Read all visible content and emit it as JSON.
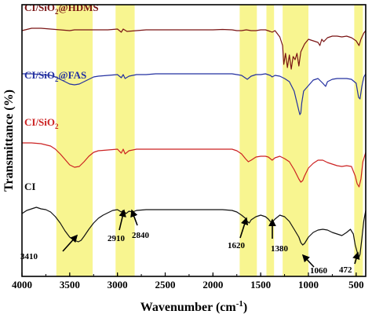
{
  "chart_data": {
    "type": "line",
    "xlabel": "Wavenumber (cm",
    "xlabel_sup": "-1",
    "xlabel_end": ")",
    "ylabel": "Transmittance (%)",
    "xlim": [
      4000,
      400
    ],
    "x_reversed": true,
    "x_ticks": [
      4000,
      3500,
      3000,
      2500,
      2000,
      1500,
      1000,
      500
    ],
    "y_ticks_shown": false,
    "grid": false,
    "legend": "none",
    "highlight_color": "#f7f37d",
    "highlight_bands": [
      [
        3640,
        3260
      ],
      [
        3020,
        2820
      ],
      [
        1720,
        1540
      ],
      [
        1440,
        1360
      ],
      [
        1270,
        1000
      ],
      [
        520,
        430
      ]
    ],
    "series": [
      {
        "name": "CI/SiO@HDMS",
        "label_base": "CI/SiO",
        "label_sub": "2",
        "label_end": "@HDMS",
        "color": "#7a1414",
        "points": [
          [
            4000,
            33
          ],
          [
            3900,
            30
          ],
          [
            3800,
            30
          ],
          [
            3700,
            31
          ],
          [
            3600,
            32
          ],
          [
            3500,
            33
          ],
          [
            3450,
            32
          ],
          [
            3400,
            32
          ],
          [
            3300,
            32
          ],
          [
            3200,
            32
          ],
          [
            3100,
            32
          ],
          [
            3000,
            31
          ],
          [
            2960,
            35
          ],
          [
            2940,
            31
          ],
          [
            2900,
            34
          ],
          [
            2800,
            33
          ],
          [
            2700,
            32
          ],
          [
            2600,
            32
          ],
          [
            2500,
            32
          ],
          [
            2400,
            32
          ],
          [
            2300,
            32
          ],
          [
            2200,
            32
          ],
          [
            2100,
            32
          ],
          [
            2000,
            32
          ],
          [
            1900,
            31.5
          ],
          [
            1800,
            32
          ],
          [
            1750,
            33
          ],
          [
            1700,
            33
          ],
          [
            1650,
            32
          ],
          [
            1600,
            33
          ],
          [
            1550,
            33
          ],
          [
            1500,
            32
          ],
          [
            1450,
            32
          ],
          [
            1400,
            34
          ],
          [
            1380,
            35
          ],
          [
            1350,
            33
          ],
          [
            1300,
            41
          ],
          [
            1270,
            52
          ],
          [
            1258,
            76
          ],
          [
            1240,
            62
          ],
          [
            1220,
            80
          ],
          [
            1200,
            64
          ],
          [
            1180,
            82
          ],
          [
            1160,
            66
          ],
          [
            1140,
            70
          ],
          [
            1120,
            62
          ],
          [
            1100,
            78
          ],
          [
            1080,
            60
          ],
          [
            1060,
            55
          ],
          [
            1040,
            50
          ],
          [
            1000,
            44
          ],
          [
            950,
            46
          ],
          [
            900,
            48
          ],
          [
            880,
            52
          ],
          [
            860,
            44
          ],
          [
            840,
            47
          ],
          [
            800,
            42
          ],
          [
            750,
            40
          ],
          [
            700,
            40
          ],
          [
            650,
            41
          ],
          [
            600,
            40
          ],
          [
            550,
            42
          ],
          [
            500,
            46
          ],
          [
            470,
            52
          ],
          [
            450,
            44
          ],
          [
            420,
            36
          ],
          [
            400,
            33
          ]
        ]
      },
      {
        "name": "CI/SiO@FAS",
        "label_base": "CI/SiO",
        "label_sub": "2",
        "label_end": "@FAS",
        "color": "#2330a0",
        "points": [
          [
            4000,
            88
          ],
          [
            3900,
            88
          ],
          [
            3800,
            89
          ],
          [
            3700,
            90
          ],
          [
            3650,
            92
          ],
          [
            3600,
            95
          ],
          [
            3550,
            98
          ],
          [
            3500,
            101
          ],
          [
            3450,
            102
          ],
          [
            3400,
            101
          ],
          [
            3350,
            98
          ],
          [
            3300,
            95
          ],
          [
            3250,
            92
          ],
          [
            3200,
            91
          ],
          [
            3100,
            90
          ],
          [
            3000,
            89
          ],
          [
            2960,
            93
          ],
          [
            2940,
            89
          ],
          [
            2920,
            94
          ],
          [
            2880,
            91
          ],
          [
            2800,
            89
          ],
          [
            2700,
            89
          ],
          [
            2600,
            88
          ],
          [
            2500,
            88
          ],
          [
            2400,
            88
          ],
          [
            2300,
            88
          ],
          [
            2200,
            88
          ],
          [
            2100,
            88
          ],
          [
            2000,
            88
          ],
          [
            1900,
            88
          ],
          [
            1800,
            88
          ],
          [
            1750,
            89
          ],
          [
            1700,
            90
          ],
          [
            1640,
            95
          ],
          [
            1600,
            91
          ],
          [
            1550,
            89
          ],
          [
            1500,
            89
          ],
          [
            1450,
            88
          ],
          [
            1400,
            90
          ],
          [
            1380,
            92
          ],
          [
            1350,
            90
          ],
          [
            1300,
            91
          ],
          [
            1250,
            94
          ],
          [
            1200,
            98
          ],
          [
            1150,
            110
          ],
          [
            1120,
            125
          ],
          [
            1100,
            135
          ],
          [
            1090,
            140
          ],
          [
            1080,
            138
          ],
          [
            1070,
            125
          ],
          [
            1050,
            110
          ],
          [
            1000,
            103
          ],
          [
            950,
            96
          ],
          [
            900,
            94
          ],
          [
            850,
            100
          ],
          [
            820,
            104
          ],
          [
            800,
            98
          ],
          [
            750,
            95
          ],
          [
            700,
            94
          ],
          [
            650,
            94
          ],
          [
            600,
            94
          ],
          [
            550,
            95
          ],
          [
            500,
            100
          ],
          [
            475,
            118
          ],
          [
            460,
            120
          ],
          [
            440,
            104
          ],
          [
            420,
            92
          ],
          [
            400,
            88
          ]
        ]
      },
      {
        "name": "CI/SiO",
        "label_base": "CI/SiO",
        "label_sub": "2",
        "label_end": "",
        "color": "#cc2222",
        "points": [
          [
            4000,
            176
          ],
          [
            3900,
            176
          ],
          [
            3800,
            177
          ],
          [
            3700,
            180
          ],
          [
            3650,
            184
          ],
          [
            3600,
            190
          ],
          [
            3550,
            197
          ],
          [
            3500,
            204
          ],
          [
            3450,
            207
          ],
          [
            3400,
            206
          ],
          [
            3350,
            200
          ],
          [
            3300,
            193
          ],
          [
            3250,
            188
          ],
          [
            3200,
            186
          ],
          [
            3100,
            185
          ],
          [
            3000,
            184
          ],
          [
            2960,
            189
          ],
          [
            2940,
            184
          ],
          [
            2920,
            190
          ],
          [
            2880,
            186
          ],
          [
            2800,
            184
          ],
          [
            2700,
            184
          ],
          [
            2600,
            184
          ],
          [
            2500,
            184
          ],
          [
            2400,
            184
          ],
          [
            2300,
            184
          ],
          [
            2200,
            184
          ],
          [
            2100,
            184
          ],
          [
            2000,
            184
          ],
          [
            1900,
            184
          ],
          [
            1800,
            184
          ],
          [
            1750,
            186
          ],
          [
            1700,
            190
          ],
          [
            1660,
            196
          ],
          [
            1630,
            200
          ],
          [
            1600,
            198
          ],
          [
            1550,
            194
          ],
          [
            1500,
            193
          ],
          [
            1450,
            193
          ],
          [
            1420,
            194
          ],
          [
            1380,
            198
          ],
          [
            1350,
            195
          ],
          [
            1300,
            193
          ],
          [
            1250,
            196
          ],
          [
            1200,
            200
          ],
          [
            1150,
            210
          ],
          [
            1100,
            222
          ],
          [
            1080,
            226
          ],
          [
            1060,
            224
          ],
          [
            1040,
            218
          ],
          [
            1000,
            208
          ],
          [
            950,
            202
          ],
          [
            900,
            198
          ],
          [
            850,
            198
          ],
          [
            800,
            201
          ],
          [
            750,
            203
          ],
          [
            700,
            205
          ],
          [
            650,
            206
          ],
          [
            600,
            205
          ],
          [
            550,
            206
          ],
          [
            510,
            218
          ],
          [
            490,
            228
          ],
          [
            470,
            232
          ],
          [
            450,
            222
          ],
          [
            430,
            200
          ],
          [
            400,
            188
          ]
        ]
      },
      {
        "name": "CI",
        "label_base": "CI",
        "label_sub": "",
        "label_end": "",
        "color": "#111111",
        "points": [
          [
            4000,
            266
          ],
          [
            3950,
            262
          ],
          [
            3900,
            260
          ],
          [
            3850,
            258
          ],
          [
            3800,
            260
          ],
          [
            3750,
            261
          ],
          [
            3700,
            264
          ],
          [
            3650,
            270
          ],
          [
            3600,
            278
          ],
          [
            3550,
            288
          ],
          [
            3500,
            296
          ],
          [
            3450,
            300
          ],
          [
            3410,
            302
          ],
          [
            3380,
            300
          ],
          [
            3350,
            295
          ],
          [
            3300,
            286
          ],
          [
            3250,
            278
          ],
          [
            3200,
            272
          ],
          [
            3150,
            268
          ],
          [
            3100,
            265
          ],
          [
            3050,
            262
          ],
          [
            3000,
            261
          ],
          [
            2960,
            264
          ],
          [
            2940,
            262
          ],
          [
            2910,
            266
          ],
          [
            2880,
            263
          ],
          [
            2840,
            264
          ],
          [
            2800,
            262
          ],
          [
            2700,
            261
          ],
          [
            2600,
            261
          ],
          [
            2500,
            261
          ],
          [
            2400,
            261
          ],
          [
            2300,
            261
          ],
          [
            2200,
            261
          ],
          [
            2100,
            261
          ],
          [
            2000,
            261
          ],
          [
            1900,
            261
          ],
          [
            1800,
            262
          ],
          [
            1750,
            264
          ],
          [
            1700,
            268
          ],
          [
            1660,
            272
          ],
          [
            1640,
            276
          ],
          [
            1620,
            278
          ],
          [
            1600,
            274
          ],
          [
            1550,
            270
          ],
          [
            1500,
            268
          ],
          [
            1450,
            270
          ],
          [
            1420,
            273
          ],
          [
            1400,
            276
          ],
          [
            1380,
            277
          ],
          [
            1350,
            273
          ],
          [
            1300,
            268
          ],
          [
            1250,
            270
          ],
          [
            1200,
            276
          ],
          [
            1150,
            286
          ],
          [
            1100,
            296
          ],
          [
            1080,
            303
          ],
          [
            1060,
            306
          ],
          [
            1040,
            304
          ],
          [
            1000,
            296
          ],
          [
            950,
            290
          ],
          [
            900,
            287
          ],
          [
            850,
            286
          ],
          [
            800,
            287
          ],
          [
            750,
            290
          ],
          [
            700,
            292
          ],
          [
            650,
            294
          ],
          [
            600,
            290
          ],
          [
            560,
            286
          ],
          [
            530,
            292
          ],
          [
            510,
            306
          ],
          [
            490,
            315
          ],
          [
            480,
            320
          ],
          [
            472,
            322
          ],
          [
            460,
            318
          ],
          [
            440,
            298
          ],
          [
            420,
            275
          ],
          [
            400,
            262
          ]
        ]
      }
    ],
    "annotations": [
      "3410",
      "2910",
      "2840",
      "1620",
      "1380",
      "1060",
      "472"
    ]
  }
}
